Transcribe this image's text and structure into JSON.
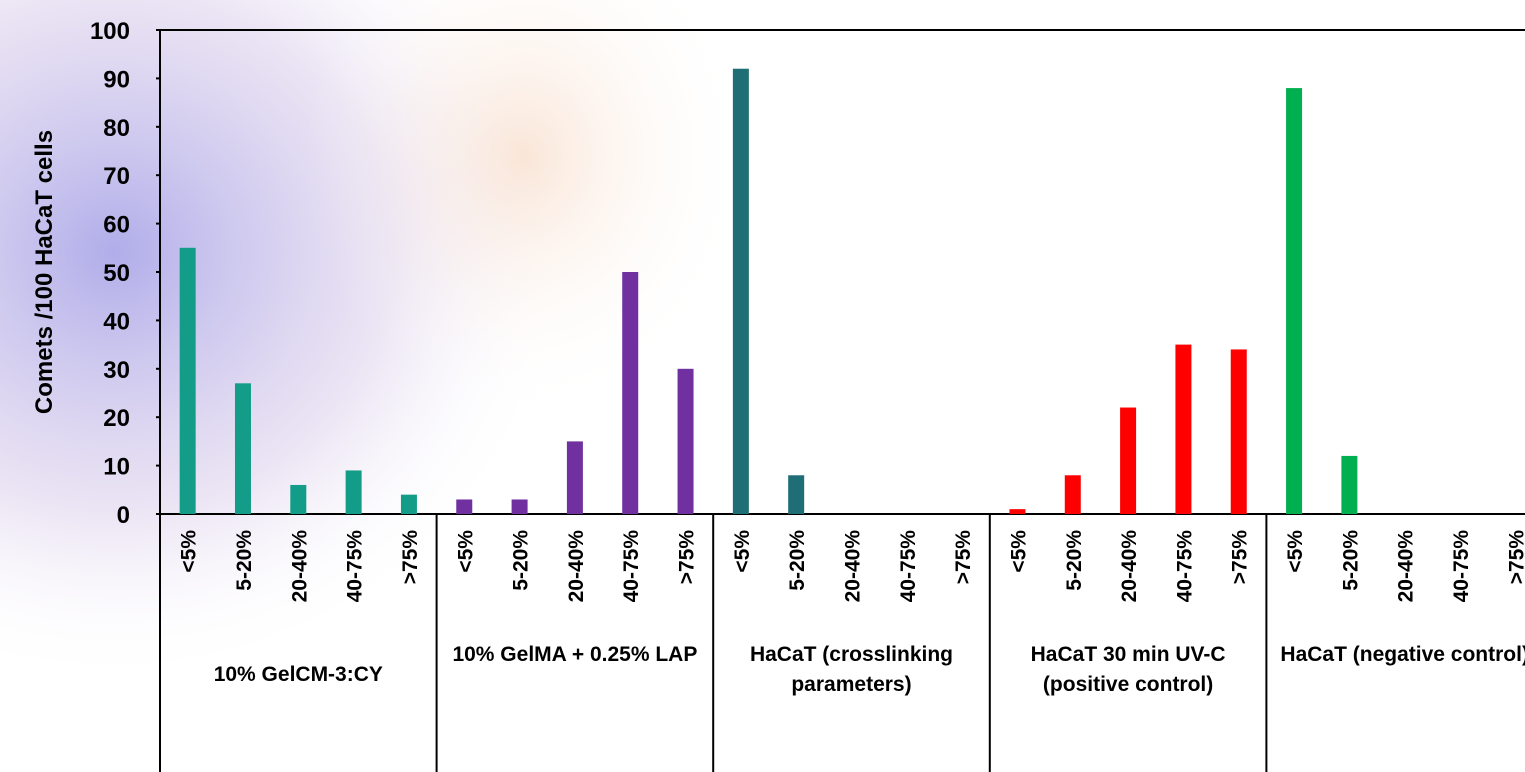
{
  "chart_data": {
    "type": "grouped-bar",
    "y_label": "Comets /100 HaCaT cells",
    "ylim": [
      0,
      100
    ],
    "yticks": [
      0,
      10,
      20,
      30,
      40,
      50,
      60,
      70,
      80,
      90,
      100
    ],
    "groups": [
      {
        "name": "10% GelCM-3:CY",
        "color": "#139c87",
        "categories": [
          "<5%",
          "5-20%",
          "20-40%",
          "40-75%",
          ">75%"
        ],
        "values": [
          55,
          27,
          6,
          9,
          4
        ]
      },
      {
        "name": "10% GelMA + 0.25% LAP",
        "color": "#7030a0",
        "categories": [
          "<5%",
          "5-20%",
          "20-40%",
          "40-75%",
          ">75%"
        ],
        "values": [
          3,
          3,
          15,
          50,
          30
        ]
      },
      {
        "name": "HaCaT (crosslinking parameters)",
        "color": "#1f6e75",
        "categories": [
          "<5%",
          "5-20%",
          "20-40%",
          "40-75%",
          ">75%"
        ],
        "values": [
          92,
          8,
          0,
          0,
          0
        ]
      },
      {
        "name": "HaCaT 30 min UV-C (positive control)",
        "color": "#ff0000",
        "categories": [
          "<5%",
          "5-20%",
          "20-40%",
          "40-75%",
          ">75%"
        ],
        "values": [
          1,
          8,
          22,
          35,
          34
        ]
      },
      {
        "name": "HaCaT (negative control)",
        "color": "#00b050",
        "categories": [
          "<5%",
          "5-20%",
          "20-40%",
          "40-75%",
          ">75%"
        ],
        "values": [
          88,
          12,
          0,
          0,
          0
        ]
      }
    ]
  }
}
